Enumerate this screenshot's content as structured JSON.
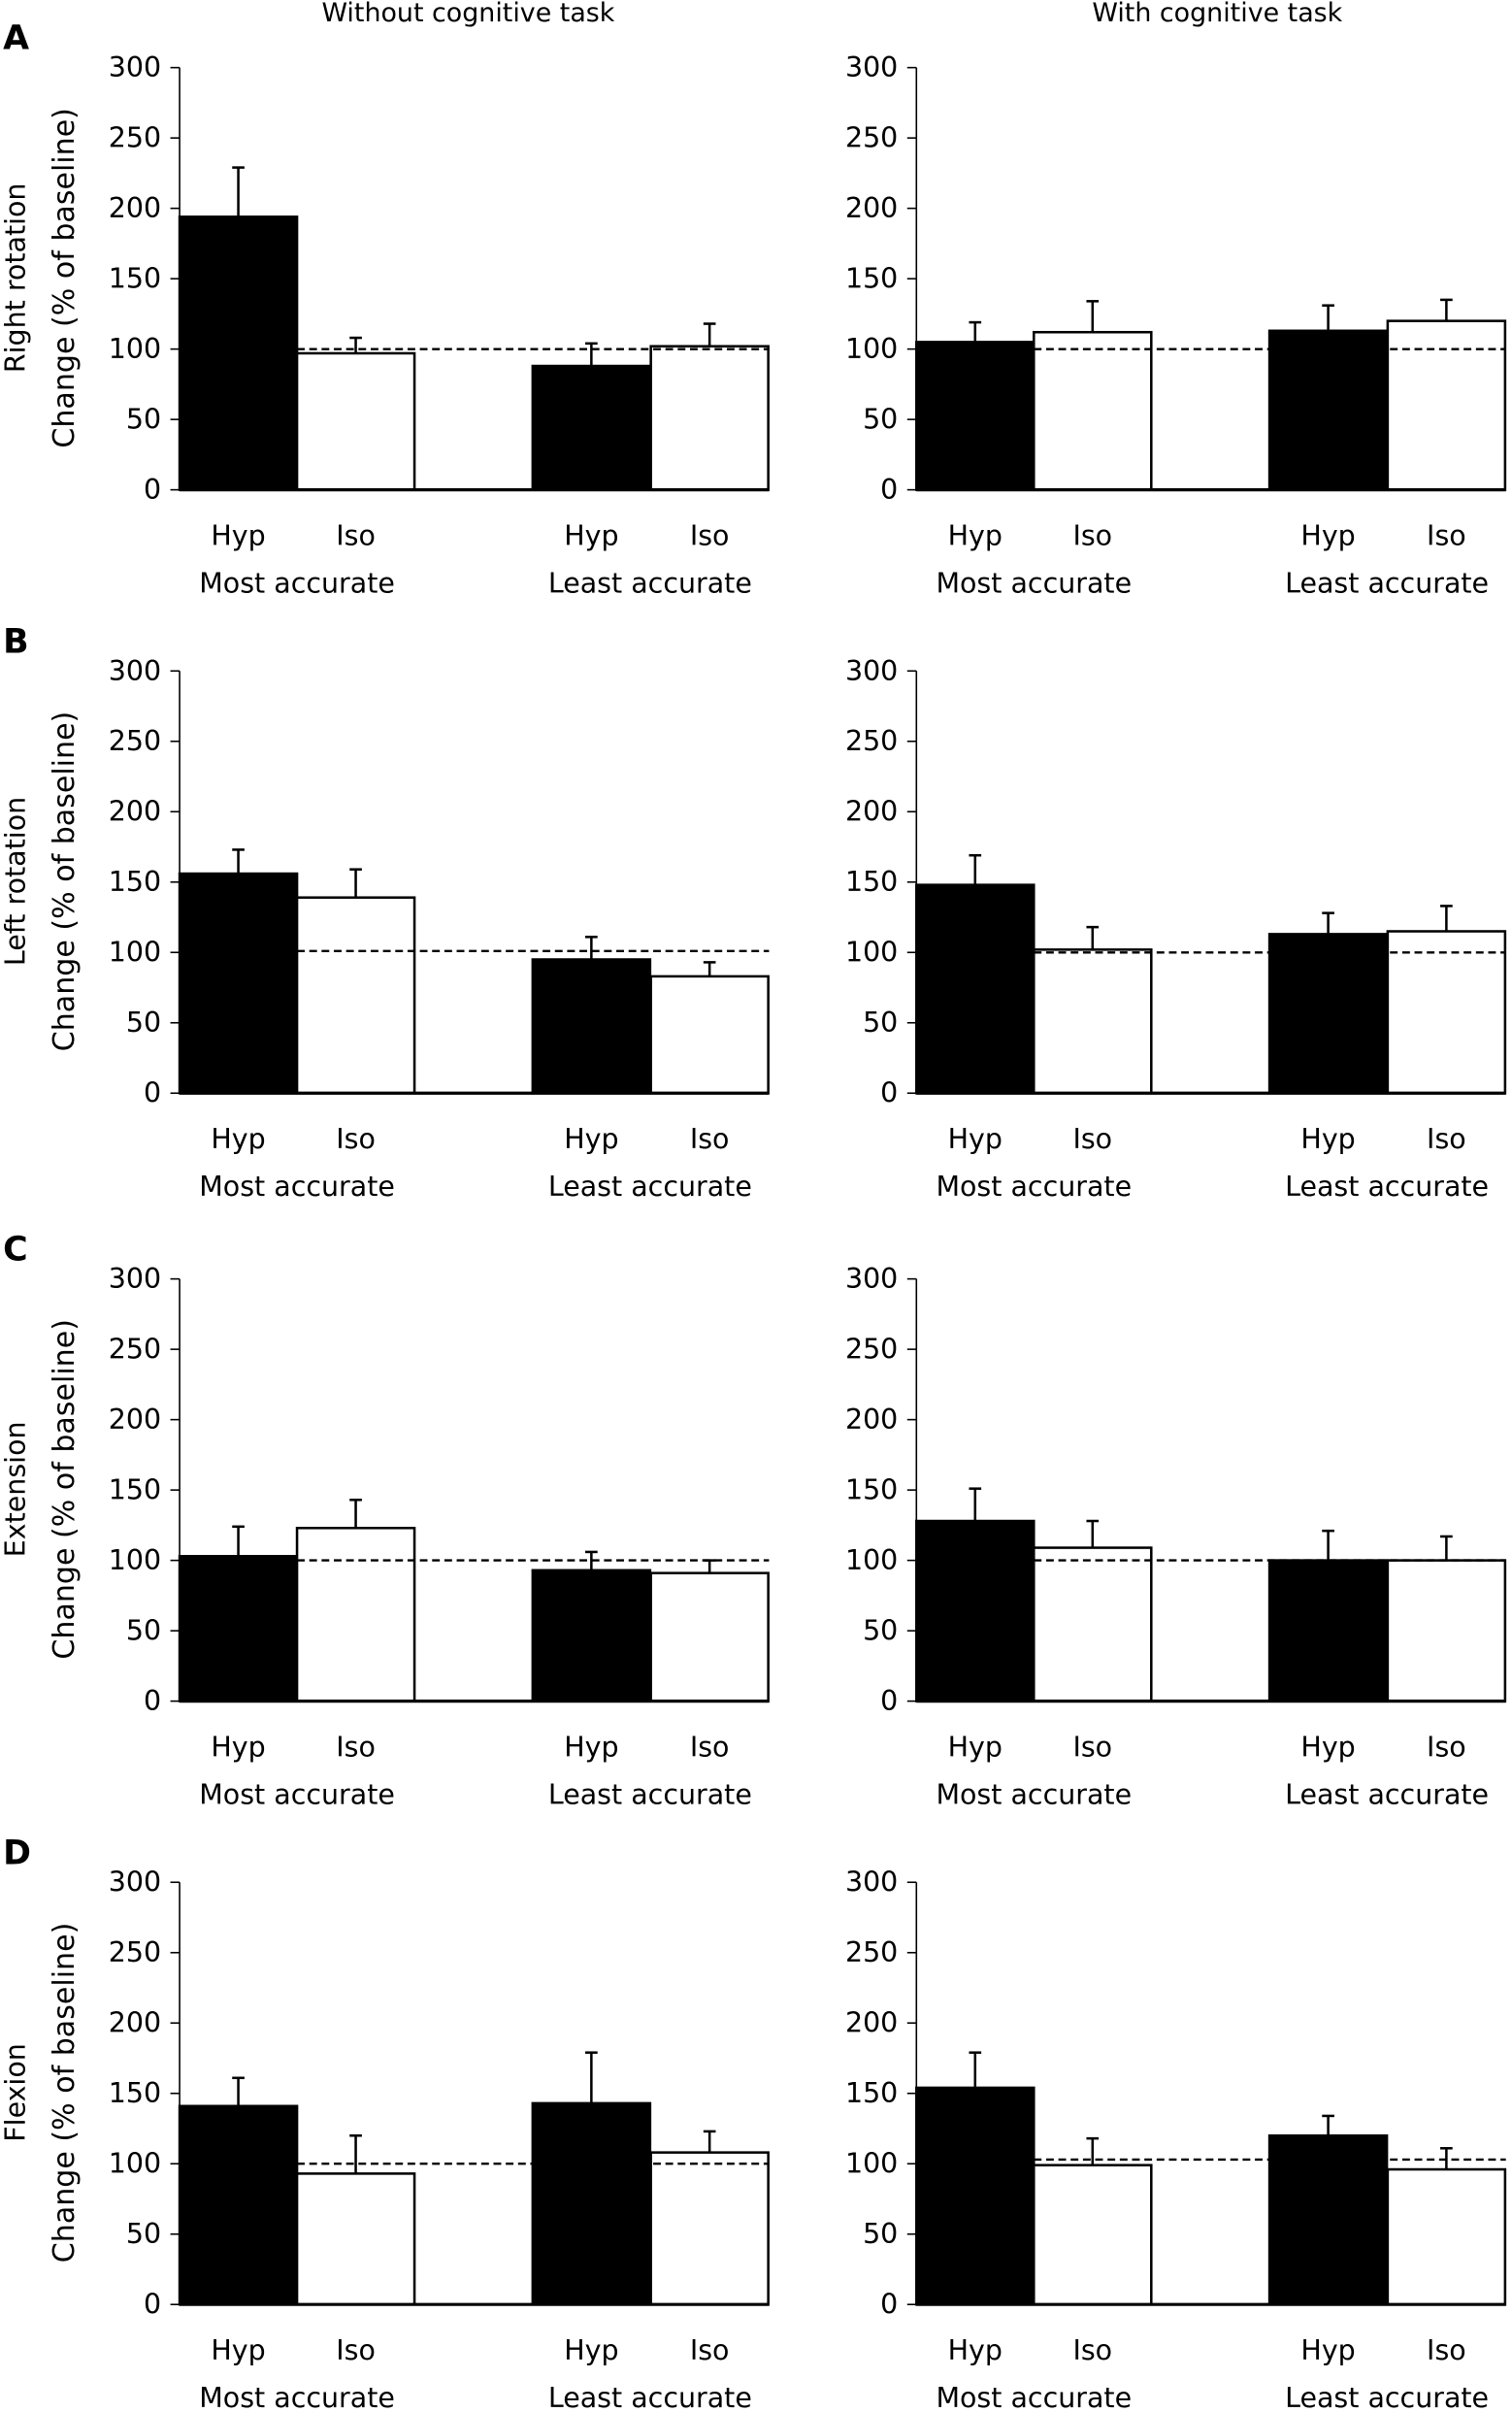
{
  "column_titles": [
    "Without cognitive task",
    "With cognitive task"
  ],
  "rows": [
    {
      "letter": "A",
      "measure": "Right rotation"
    },
    {
      "letter": "B",
      "measure": "Left rotation"
    },
    {
      "letter": "C",
      "measure": "Extension"
    },
    {
      "letter": "D",
      "measure": "Flexion"
    }
  ],
  "ylabel": "Change (% of baseline)",
  "bar_labels": [
    "Hyp",
    "Iso",
    "Hyp",
    "Iso"
  ],
  "group_labels": [
    "Most accurate",
    "Least accurate"
  ],
  "colors": {
    "Hyp": "#000000",
    "Iso": "#ffffff"
  },
  "chart_data": [
    {
      "type": "bar",
      "row": "A",
      "column": "Without cognitive task",
      "ylabel": "Change (% of baseline)",
      "ylim": [
        0,
        300
      ],
      "yticks": [
        0,
        50,
        100,
        150,
        200,
        250,
        300
      ],
      "baseline": 100,
      "categories": [
        "Most accurate Hyp",
        "Most accurate Iso",
        "Least accurate Hyp",
        "Least accurate Iso"
      ],
      "values": [
        194,
        97,
        88,
        102
      ],
      "error_upper": [
        229,
        108,
        104,
        118
      ]
    },
    {
      "type": "bar",
      "row": "A",
      "column": "With cognitive task",
      "ylabel": "Change (% of baseline)",
      "ylim": [
        0,
        300
      ],
      "yticks": [
        0,
        50,
        100,
        150,
        200,
        250,
        300
      ],
      "baseline": 100,
      "categories": [
        "Most accurate Hyp",
        "Most accurate Iso",
        "Least accurate Hyp",
        "Least accurate Iso"
      ],
      "values": [
        105,
        112,
        113,
        120
      ],
      "error_upper": [
        119,
        134,
        131,
        135
      ]
    },
    {
      "type": "bar",
      "row": "B",
      "column": "Without cognitive task",
      "ylabel": "Change (% of baseline)",
      "ylim": [
        0,
        300
      ],
      "yticks": [
        0,
        50,
        100,
        150,
        200,
        250,
        300
      ],
      "baseline": 101,
      "categories": [
        "Most accurate Hyp",
        "Most accurate Iso",
        "Least accurate Hyp",
        "Least accurate Iso"
      ],
      "values": [
        156,
        139,
        95,
        83
      ],
      "error_upper": [
        173,
        159,
        111,
        93
      ]
    },
    {
      "type": "bar",
      "row": "B",
      "column": "With cognitive task",
      "ylabel": "Change (% of baseline)",
      "ylim": [
        0,
        300
      ],
      "yticks": [
        0,
        50,
        100,
        150,
        200,
        250,
        300
      ],
      "baseline": 100,
      "categories": [
        "Most accurate Hyp",
        "Most accurate Iso",
        "Least accurate Hyp",
        "Least accurate Iso"
      ],
      "values": [
        148,
        102,
        113,
        115
      ],
      "error_upper": [
        169,
        118,
        128,
        133
      ]
    },
    {
      "type": "bar",
      "row": "C",
      "column": "Without cognitive task",
      "ylabel": "Change (% of baseline)",
      "ylim": [
        0,
        300
      ],
      "yticks": [
        0,
        50,
        100,
        150,
        200,
        250,
        300
      ],
      "baseline": 100,
      "categories": [
        "Most accurate Hyp",
        "Most accurate Iso",
        "Least accurate Hyp",
        "Least accurate Iso"
      ],
      "values": [
        103,
        123,
        93,
        91
      ],
      "error_upper": [
        124,
        143,
        106,
        100
      ]
    },
    {
      "type": "bar",
      "row": "C",
      "column": "With cognitive task",
      "ylabel": "Change (% of baseline)",
      "ylim": [
        0,
        300
      ],
      "yticks": [
        0,
        50,
        100,
        150,
        200,
        250,
        300
      ],
      "baseline": 100,
      "categories": [
        "Most accurate Hyp",
        "Most accurate Iso",
        "Least accurate Hyp",
        "Least accurate Iso"
      ],
      "values": [
        128,
        109,
        100,
        100
      ],
      "error_upper": [
        151,
        128,
        121,
        117
      ]
    },
    {
      "type": "bar",
      "row": "D",
      "column": "Without cognitive task",
      "ylabel": "Change (% of baseline)",
      "ylim": [
        0,
        300
      ],
      "yticks": [
        0,
        50,
        100,
        150,
        200,
        250,
        300
      ],
      "baseline": 100,
      "categories": [
        "Most accurate Hyp",
        "Most accurate Iso",
        "Least accurate Hyp",
        "Least accurate Iso"
      ],
      "values": [
        141,
        93,
        143,
        108
      ],
      "error_upper": [
        161,
        120,
        179,
        123
      ]
    },
    {
      "type": "bar",
      "row": "D",
      "column": "With cognitive task",
      "ylabel": "Change (% of baseline)",
      "ylim": [
        0,
        300
      ],
      "yticks": [
        0,
        50,
        100,
        150,
        200,
        250,
        300
      ],
      "baseline": 103,
      "categories": [
        "Most accurate Hyp",
        "Most accurate Iso",
        "Least accurate Hyp",
        "Least accurate Iso"
      ],
      "values": [
        154,
        99,
        120,
        96
      ],
      "error_upper": [
        179,
        118,
        134,
        111
      ]
    }
  ]
}
